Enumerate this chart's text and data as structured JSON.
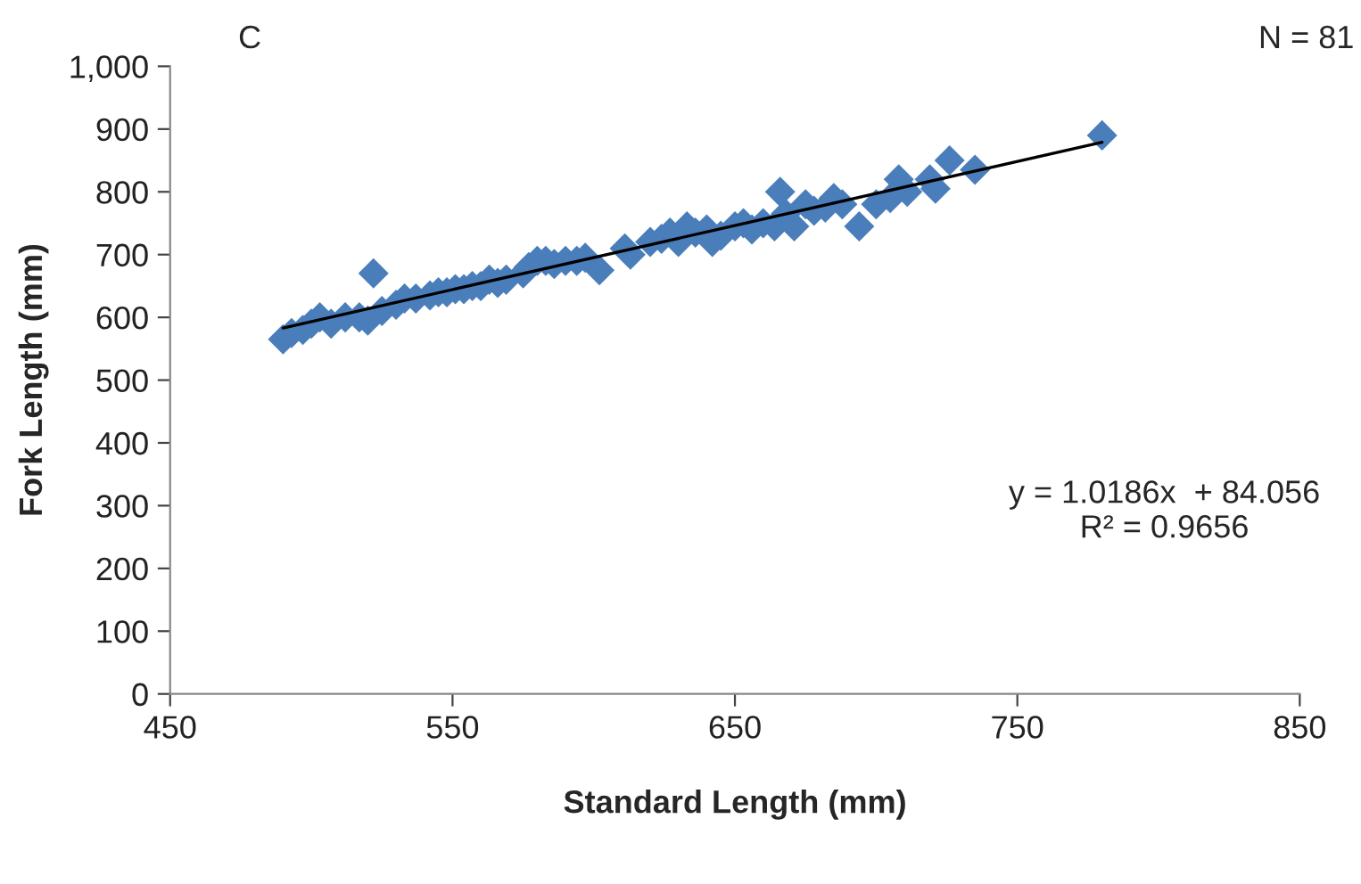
{
  "chart_data": {
    "type": "scatter",
    "xlabel": "Standard Length (mm)",
    "ylabel": "Fork Length (mm)",
    "xlim": [
      450,
      850
    ],
    "xticks": [
      450,
      550,
      650,
      750,
      850
    ],
    "ylim": [
      0,
      1000
    ],
    "yticks": [
      0,
      100,
      200,
      300,
      400,
      500,
      600,
      700,
      800,
      900,
      {
        "value": 1000,
        "label": "1,000"
      }
    ],
    "grid": false,
    "legend": false,
    "series": [
      {
        "marker": "diamond",
        "color": "#4a7ebb",
        "x": [
          490,
          493,
          497,
          500,
          503,
          507,
          512,
          517,
          520,
          522,
          525,
          530,
          533,
          537,
          542,
          545,
          548,
          551,
          554,
          557,
          560,
          563,
          566,
          569,
          575,
          577,
          580,
          583,
          586,
          590,
          594,
          597,
          602,
          611,
          613,
          620,
          624,
          627,
          630,
          633,
          636,
          640,
          642,
          645,
          650,
          653,
          656,
          660,
          664,
          666,
          668,
          671,
          675,
          678,
          682,
          685,
          688,
          694,
          700,
          705,
          708,
          711,
          719,
          721,
          726,
          735,
          780
        ],
        "values": [
          565,
          575,
          580,
          590,
          600,
          590,
          600,
          600,
          595,
          670,
          610,
          620,
          630,
          630,
          635,
          640,
          640,
          645,
          645,
          650,
          650,
          660,
          655,
          660,
          670,
          680,
          690,
          690,
          685,
          690,
          690,
          695,
          675,
          710,
          700,
          720,
          725,
          735,
          720,
          745,
          735,
          740,
          720,
          730,
          745,
          750,
          740,
          750,
          745,
          800,
          765,
          745,
          780,
          770,
          775,
          790,
          780,
          745,
          780,
          790,
          820,
          800,
          820,
          805,
          850,
          835,
          890
        ]
      },
      {
        "type": "line",
        "marker": "none",
        "line_style": "solid",
        "color": "#000000",
        "x": [
          490,
          780
        ],
        "values": [
          583,
          879
        ]
      }
    ],
    "annotations": [
      "C",
      "N = 81",
      "y = 1.0186x  + 84.056\nR² = 0.9656"
    ]
  }
}
